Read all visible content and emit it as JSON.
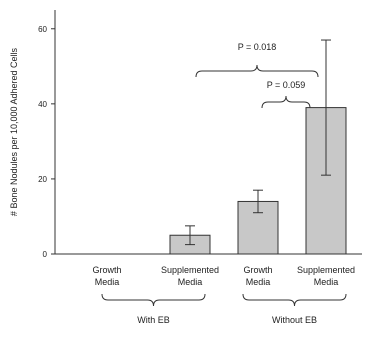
{
  "chart_data": {
    "type": "bar",
    "title": "",
    "xlabel": "",
    "ylabel": "# Bone Nodules per 10,000 Adhered Cells",
    "ylim": [
      0,
      65
    ],
    "yticks": [
      0,
      20,
      40,
      60
    ],
    "categories": [
      [
        "Growth",
        "Media"
      ],
      [
        "Supplemented",
        "Media"
      ],
      [
        "Growth",
        "Media"
      ],
      [
        "Supplemented",
        "Media"
      ]
    ],
    "values": [
      0,
      5,
      14,
      39
    ],
    "errors": [
      [
        0,
        0
      ],
      [
        2.5,
        2.5
      ],
      [
        3,
        3
      ],
      [
        18,
        18
      ]
    ],
    "groups": [
      {
        "label": "With EB",
        "members": [
          0,
          1
        ]
      },
      {
        "label": "Without EB",
        "members": [
          2,
          3
        ]
      }
    ],
    "annotations": [
      {
        "text": "P = 0.018",
        "from": 1,
        "to": 3
      },
      {
        "text": "P = 0.059",
        "from": 2,
        "to": 3
      }
    ],
    "grid": false,
    "colors": {
      "bar": "#c8c8c8",
      "stroke": "#333333"
    }
  }
}
